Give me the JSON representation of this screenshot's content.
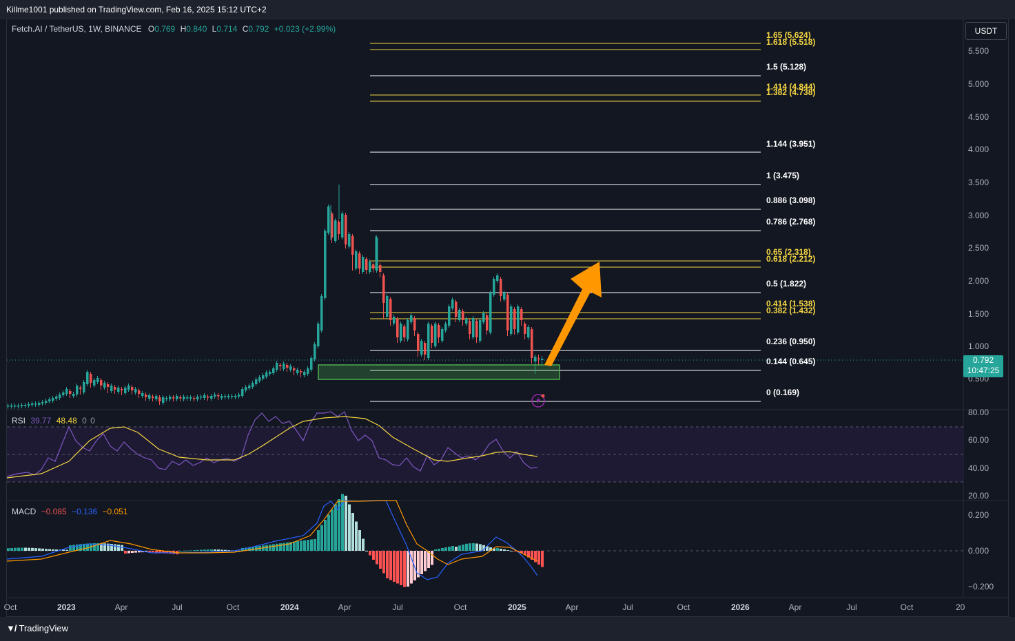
{
  "header": {
    "published_text": "Killme1001 published on TradingView.com, Feb 16, 2025 15:12 UTC+2"
  },
  "symbol": {
    "title": "Fetch.AI / TetherUS, 1W, BINANCE",
    "o_label": "O",
    "o_value": "0.769",
    "h_label": "H",
    "h_value": "0.840",
    "l_label": "L",
    "l_value": "0.714",
    "c_label": "C",
    "c_value": "0.792",
    "change": "+0.023 (+2.99%)"
  },
  "currency": "USDT",
  "price_axis": [
    "5.500",
    "5.000",
    "4.500",
    "4.000",
    "3.500",
    "3.000",
    "2.500",
    "2.000",
    "1.500",
    "1.000",
    "0.500"
  ],
  "last_price": {
    "price": "0.792",
    "countdown": "10:47:25"
  },
  "fib_levels": [
    {
      "label": "1.65 (5.624)",
      "color": "#f5d742"
    },
    {
      "label": "1.618 (5.518)",
      "color": "#f5d742"
    },
    {
      "label": "1.5 (5.128)",
      "color": "#ffffff"
    },
    {
      "label": "1.414 (4.844)",
      "color": "#f5d742"
    },
    {
      "label": "1.382 (4.738)",
      "color": "#f5d742"
    },
    {
      "label": "1.144 (3.951)",
      "color": "#ffffff"
    },
    {
      "label": "1 (3.475)",
      "color": "#ffffff"
    },
    {
      "label": "0.886 (3.098)",
      "color": "#ffffff"
    },
    {
      "label": "0.786 (2.768)",
      "color": "#ffffff"
    },
    {
      "label": "0.65 (2.318)",
      "color": "#f5d742"
    },
    {
      "label": "0.618 (2.212)",
      "color": "#f5d742"
    },
    {
      "label": "0.5 (1.822)",
      "color": "#ffffff"
    },
    {
      "label": "0.414 (1.538)",
      "color": "#f5d742"
    },
    {
      "label": "0.382 (1.432)",
      "color": "#f5d742"
    },
    {
      "label": "0.236 (0.950)",
      "color": "#ffffff"
    },
    {
      "label": "0.144 (0.645)",
      "color": "#ffffff"
    },
    {
      "label": "0 (0.169)",
      "color": "#ffffff"
    }
  ],
  "rsi": {
    "label": "RSI",
    "value": "39.77",
    "ma_value": "48.48",
    "extra1": "0",
    "extra2": "0",
    "axis": [
      "80.00",
      "60.00",
      "40.00",
      "20.00"
    ],
    "line_color": "#7e57c2",
    "ma_color": "#f5d742"
  },
  "macd": {
    "label": "MACD",
    "hist": "−0.085",
    "macd": "−0.136",
    "signal": "−0.051",
    "axis": [
      "0.200",
      "0.000",
      "−0.200"
    ],
    "hist_color": "#ff5252",
    "macd_color": "#2962ff",
    "signal_color": "#ff9800"
  },
  "time_axis": [
    "Oct",
    "2023",
    "Apr",
    "Jul",
    "Oct",
    "2024",
    "Apr",
    "Jul",
    "Oct",
    "2025",
    "Apr",
    "Jul",
    "Oct",
    "2026",
    "Apr",
    "Jul",
    "Oct",
    "20"
  ],
  "colors": {
    "up": "#26a69a",
    "down": "#ef5350",
    "background": "#131722",
    "arrow": "#ff9800",
    "zone": "#4caf50"
  },
  "footer": {
    "brand": "TradingView"
  }
}
